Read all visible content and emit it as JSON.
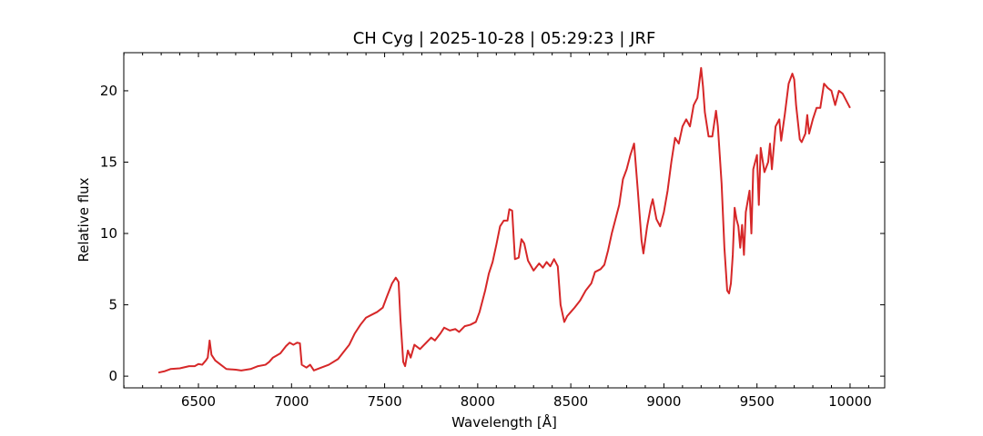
{
  "chart_data": {
    "type": "line",
    "title": "CH Cyg | 2025-10-28 | 05:29:23 | JRF",
    "xlabel": "Wavelength [Å]",
    "ylabel": "Relative flux",
    "xlim": [
      6099,
      10186
    ],
    "ylim": [
      -0.82,
      22.67
    ],
    "xticks": [
      6500,
      7000,
      7500,
      8000,
      8500,
      9000,
      9500,
      10000
    ],
    "xminorticks": [
      6100,
      6200,
      6300,
      6400,
      6600,
      6700,
      6800,
      6900,
      7100,
      7200,
      7300,
      7400,
      7600,
      7700,
      7800,
      7900,
      8100,
      8200,
      8300,
      8400,
      8600,
      8700,
      8800,
      8900,
      9100,
      9200,
      9300,
      9400,
      9600,
      9700,
      9800,
      9900,
      10100
    ],
    "yticks": [
      0,
      5,
      10,
      15,
      20
    ],
    "series": [
      {
        "name": "CH Cyg",
        "color": "#d62728",
        "x": [
          6285,
          6320,
          6350,
          6400,
          6450,
          6480,
          6500,
          6520,
          6540,
          6550,
          6560,
          6570,
          6590,
          6620,
          6650,
          6700,
          6730,
          6780,
          6820,
          6860,
          6880,
          6900,
          6940,
          6970,
          6990,
          7010,
          7030,
          7045,
          7055,
          7080,
          7100,
          7120,
          7150,
          7200,
          7250,
          7280,
          7310,
          7340,
          7370,
          7400,
          7430,
          7460,
          7490,
          7510,
          7540,
          7560,
          7575,
          7585,
          7600,
          7610,
          7625,
          7640,
          7660,
          7690,
          7720,
          7750,
          7770,
          7800,
          7820,
          7850,
          7880,
          7900,
          7930,
          7960,
          7990,
          8010,
          8040,
          8060,
          8080,
          8100,
          8120,
          8140,
          8160,
          8170,
          8185,
          8200,
          8220,
          8235,
          8250,
          8270,
          8300,
          8330,
          8350,
          8370,
          8390,
          8410,
          8430,
          8445,
          8465,
          8480,
          8500,
          8520,
          8550,
          8580,
          8610,
          8630,
          8660,
          8680,
          8700,
          8720,
          8740,
          8760,
          8780,
          8800,
          8820,
          8840,
          8860,
          8880,
          8890,
          8910,
          8930,
          8940,
          8960,
          8980,
          9000,
          9020,
          9040,
          9060,
          9080,
          9100,
          9120,
          9140,
          9160,
          9180,
          9200,
          9210,
          9220,
          9240,
          9260,
          9280,
          9290,
          9310,
          9325,
          9340,
          9350,
          9360,
          9370,
          9380,
          9390,
          9400,
          9410,
          9420,
          9430,
          9440,
          9460,
          9470,
          9480,
          9500,
          9510,
          9520,
          9540,
          9560,
          9570,
          9580,
          9600,
          9620,
          9630,
          9650,
          9670,
          9690,
          9700,
          9710,
          9730,
          9740,
          9760,
          9770,
          9780,
          9800,
          9820,
          9840,
          9860,
          9880,
          9900,
          9920,
          9940,
          9960,
          9980,
          10000
        ],
        "values": [
          0.25,
          0.35,
          0.5,
          0.55,
          0.7,
          0.7,
          0.85,
          0.8,
          1.1,
          1.3,
          2.5,
          1.5,
          1.1,
          0.8,
          0.5,
          0.45,
          0.4,
          0.5,
          0.7,
          0.8,
          1.0,
          1.3,
          1.6,
          2.1,
          2.35,
          2.2,
          2.35,
          2.3,
          0.8,
          0.6,
          0.8,
          0.4,
          0.55,
          0.8,
          1.2,
          1.7,
          2.2,
          3.0,
          3.6,
          4.1,
          4.3,
          4.5,
          4.8,
          5.5,
          6.5,
          6.9,
          6.6,
          4.0,
          1.0,
          0.7,
          1.8,
          1.3,
          2.2,
          1.9,
          2.3,
          2.7,
          2.5,
          3.0,
          3.4,
          3.2,
          3.3,
          3.1,
          3.5,
          3.6,
          3.8,
          4.5,
          6.0,
          7.2,
          8.0,
          9.2,
          10.5,
          10.9,
          10.9,
          11.7,
          11.6,
          8.2,
          8.3,
          9.6,
          9.3,
          8.1,
          7.4,
          7.9,
          7.6,
          8.0,
          7.7,
          8.2,
          7.7,
          5.0,
          3.8,
          4.2,
          4.5,
          4.8,
          5.3,
          6.0,
          6.5,
          7.3,
          7.5,
          7.8,
          8.8,
          10.0,
          11.0,
          12.0,
          13.8,
          14.5,
          15.5,
          16.3,
          13.0,
          9.5,
          8.6,
          10.5,
          11.9,
          12.4,
          11.0,
          10.5,
          11.5,
          13.0,
          15.0,
          16.7,
          16.3,
          17.5,
          18.0,
          17.5,
          19.0,
          19.5,
          21.6,
          20.3,
          18.5,
          16.8,
          16.8,
          18.6,
          17.5,
          13.5,
          9.0,
          6.0,
          5.8,
          6.5,
          8.5,
          11.8,
          11.0,
          10.5,
          9.0,
          10.6,
          8.5,
          11.5,
          13.0,
          10.0,
          14.5,
          15.5,
          12.0,
          16.0,
          14.3,
          15.0,
          16.3,
          14.5,
          17.5,
          18.0,
          16.5,
          18.4,
          20.5,
          21.2,
          20.8,
          19.0,
          16.6,
          16.4,
          17.0,
          18.3,
          17.0,
          18.0,
          18.8,
          18.8,
          20.5,
          20.2,
          20.0,
          19.0,
          20.0,
          19.8,
          19.3,
          18.8
        ]
      }
    ]
  }
}
